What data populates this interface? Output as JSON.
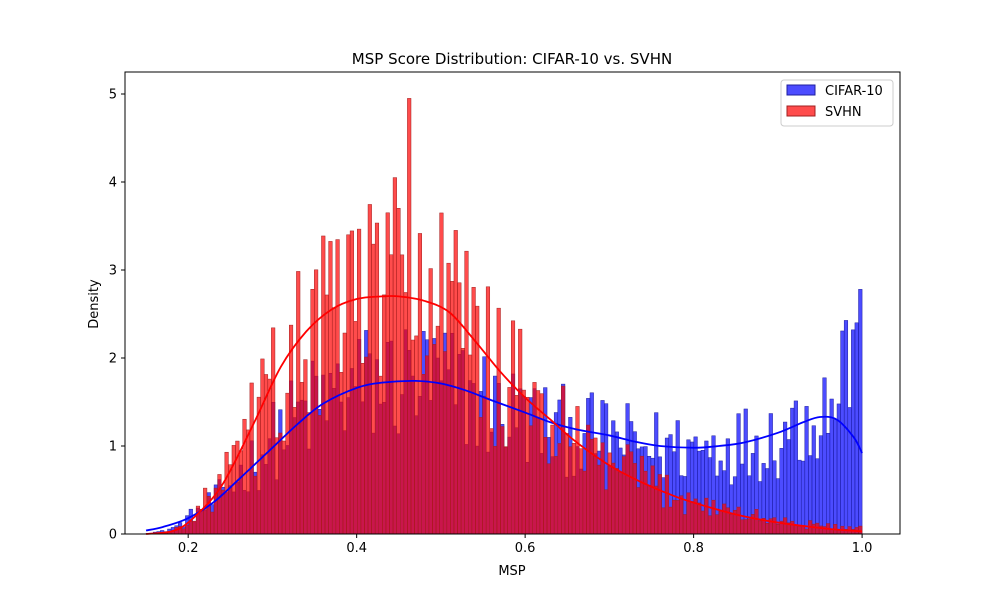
{
  "chart_data": {
    "type": "bar",
    "title": "MSP Score Distribution: CIFAR-10 vs. SVHN",
    "xlabel": "MSP",
    "ylabel": "Density",
    "xlim": [
      0.125,
      1.045
    ],
    "ylim": [
      0,
      5.25
    ],
    "xticks": [
      "0.2",
      "0.4",
      "0.6",
      "0.8",
      "1.0"
    ],
    "yticks": [
      "0",
      "1",
      "2",
      "3",
      "4",
      "5"
    ],
    "grid": false,
    "legend_position": "top-right",
    "bin_width": 0.00425,
    "colors": {
      "cifar_fill": "#0000ff",
      "cifar_edge": "#1f1f9f",
      "svhn_fill": "#ff0000",
      "svhn_edge": "#a02020",
      "overlap_fill": "#c41030",
      "kde_cifar": "#0000ff",
      "kde_svhn": "#ff0000"
    },
    "histogram_anchors": {
      "cifar_x": [
        0.15,
        0.17,
        0.19,
        0.2,
        0.22,
        0.24,
        0.26,
        0.28,
        0.3,
        0.33,
        0.36,
        0.4,
        0.44,
        0.47,
        0.5,
        0.53,
        0.56,
        0.6,
        0.63,
        0.66,
        0.7,
        0.73,
        0.76,
        0.8,
        0.83,
        0.86,
        0.9,
        0.92,
        0.94,
        0.96,
        0.98,
        1.0
      ],
      "cifar_y": [
        0.01,
        0.03,
        0.1,
        0.18,
        0.3,
        0.45,
        0.65,
        0.85,
        1.05,
        1.3,
        1.5,
        1.65,
        1.73,
        1.74,
        1.7,
        1.6,
        1.45,
        1.3,
        1.2,
        1.15,
        1.08,
        1.02,
        0.98,
        0.98,
        1.0,
        1.03,
        1.12,
        1.25,
        1.35,
        1.45,
        1.7,
        2.4
      ],
      "svhn_x": [
        0.15,
        0.18,
        0.2,
        0.22,
        0.25,
        0.28,
        0.31,
        0.35,
        0.4,
        0.45,
        0.5,
        0.55,
        0.58,
        0.62,
        0.66,
        0.7,
        0.74,
        0.78,
        0.82,
        0.86,
        0.9,
        0.94,
        1.0
      ],
      "svhn_y": [
        0.0,
        0.02,
        0.15,
        0.35,
        0.7,
        1.25,
        1.8,
        2.25,
        2.65,
        2.72,
        2.5,
        2.0,
        1.7,
        1.35,
        1.0,
        0.78,
        0.6,
        0.45,
        0.32,
        0.22,
        0.15,
        0.1,
        0.06
      ]
    },
    "series": [
      {
        "name": "CIFAR-10",
        "kde": {
          "x": [
            0.15,
            0.17,
            0.2,
            0.23,
            0.26,
            0.3,
            0.33,
            0.36,
            0.4,
            0.43,
            0.47,
            0.5,
            0.53,
            0.56,
            0.6,
            0.63,
            0.66,
            0.7,
            0.73,
            0.76,
            0.8,
            0.83,
            0.86,
            0.9,
            0.93,
            0.95,
            0.97,
            0.99,
            1.0
          ],
          "y": [
            0.04,
            0.08,
            0.18,
            0.36,
            0.62,
            0.98,
            1.25,
            1.48,
            1.66,
            1.72,
            1.74,
            1.71,
            1.63,
            1.52,
            1.38,
            1.27,
            1.19,
            1.12,
            1.05,
            1.0,
            0.98,
            1.0,
            1.04,
            1.15,
            1.27,
            1.33,
            1.3,
            1.1,
            0.92
          ]
        }
      },
      {
        "name": "SVHN",
        "kde": {
          "x": [
            0.15,
            0.18,
            0.2,
            0.23,
            0.25,
            0.28,
            0.31,
            0.34,
            0.37,
            0.4,
            0.43,
            0.45,
            0.48,
            0.51,
            0.54,
            0.57,
            0.6,
            0.63,
            0.66,
            0.7,
            0.74,
            0.78,
            0.82,
            0.86,
            0.9,
            0.94,
            0.97,
            1.0
          ],
          "y": [
            0.0,
            0.03,
            0.13,
            0.42,
            0.72,
            1.3,
            1.9,
            2.3,
            2.55,
            2.67,
            2.7,
            2.7,
            2.65,
            2.52,
            2.2,
            1.85,
            1.55,
            1.3,
            1.05,
            0.78,
            0.58,
            0.42,
            0.3,
            0.2,
            0.13,
            0.08,
            0.05,
            0.03
          ]
        }
      }
    ]
  }
}
